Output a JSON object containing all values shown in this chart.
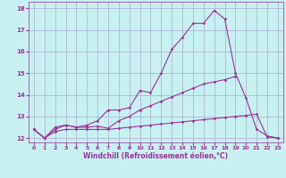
{
  "xlabel": "Windchill (Refroidissement éolien,°C)",
  "xlim": [
    -0.5,
    23.5
  ],
  "ylim": [
    11.8,
    18.3
  ],
  "yticks": [
    12,
    13,
    14,
    15,
    16,
    17,
    18
  ],
  "xticks": [
    0,
    1,
    2,
    3,
    4,
    5,
    6,
    7,
    8,
    9,
    10,
    11,
    12,
    13,
    14,
    15,
    16,
    17,
    18,
    19,
    20,
    21,
    22,
    23
  ],
  "bg_color": "#c8f0f0",
  "line_color": "#993399",
  "grid_color": "#aaaacc",
  "curves": {
    "upper": {
      "x": [
        0,
        1,
        2,
        3,
        4,
        5,
        6,
        7,
        8,
        9,
        10,
        11,
        12,
        13,
        14,
        15,
        16,
        17,
        18,
        19,
        20,
        21,
        22,
        23
      ],
      "y": [
        12.4,
        12.0,
        12.5,
        12.6,
        12.5,
        12.6,
        12.8,
        13.3,
        13.3,
        13.4,
        14.2,
        14.1,
        15.0,
        16.1,
        16.65,
        17.3,
        17.3,
        17.9,
        17.5,
        15.0,
        13.85,
        12.4,
        12.1,
        12.0
      ]
    },
    "mid": {
      "x": [
        0,
        1,
        2,
        3,
        4,
        5,
        6,
        7,
        8,
        9,
        10,
        11,
        12,
        13,
        14,
        15,
        16,
        17,
        18,
        19
      ],
      "y": [
        12.4,
        12.0,
        12.4,
        12.6,
        12.5,
        12.5,
        12.55,
        12.45,
        12.8,
        13.0,
        13.3,
        13.5,
        13.7,
        13.9,
        14.1,
        14.3,
        14.5,
        14.6,
        14.7,
        14.85
      ]
    },
    "lower": {
      "x": [
        0,
        1,
        2,
        3,
        4,
        5,
        6,
        7,
        8,
        9,
        10,
        11,
        12,
        13,
        14,
        15,
        16,
        17,
        18,
        19,
        20,
        21,
        22,
        23
      ],
      "y": [
        12.4,
        12.0,
        12.3,
        12.4,
        12.4,
        12.4,
        12.4,
        12.4,
        12.45,
        12.5,
        12.55,
        12.6,
        12.65,
        12.7,
        12.75,
        12.8,
        12.85,
        12.9,
        12.95,
        13.0,
        13.05,
        13.1,
        12.05,
        12.0
      ]
    }
  },
  "xlabel_fontsize": 5.5,
  "tick_fontsize": 4.5,
  "line_width": 0.8,
  "marker_size": 1.8
}
